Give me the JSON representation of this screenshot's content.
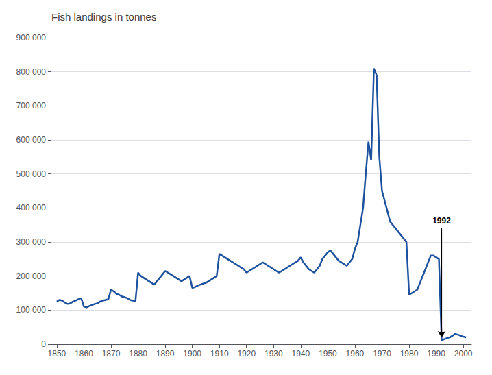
{
  "chart_data": {
    "type": "line",
    "title": "Fish landings in tonnes",
    "x": [
      1850,
      1851,
      1852,
      1853,
      1854,
      1855,
      1856,
      1857,
      1858,
      1859,
      1860,
      1861,
      1862,
      1863,
      1864,
      1865,
      1866,
      1867,
      1868,
      1869,
      1870,
      1871,
      1872,
      1873,
      1874,
      1875,
      1876,
      1877,
      1878,
      1879,
      1880,
      1881,
      1882,
      1883,
      1884,
      1885,
      1886,
      1887,
      1888,
      1889,
      1890,
      1891,
      1892,
      1893,
      1894,
      1895,
      1896,
      1897,
      1898,
      1899,
      1900,
      1901,
      1902,
      1903,
      1904,
      1905,
      1906,
      1907,
      1908,
      1909,
      1910,
      1911,
      1912,
      1913,
      1914,
      1915,
      1916,
      1917,
      1918,
      1919,
      1920,
      1921,
      1922,
      1923,
      1924,
      1925,
      1926,
      1927,
      1928,
      1929,
      1930,
      1931,
      1932,
      1933,
      1934,
      1935,
      1936,
      1937,
      1938,
      1939,
      1940,
      1941,
      1942,
      1943,
      1944,
      1945,
      1946,
      1947,
      1948,
      1949,
      1950,
      1951,
      1952,
      1953,
      1954,
      1955,
      1956,
      1957,
      1958,
      1959,
      1960,
      1961,
      1962,
      1963,
      1964,
      1965,
      1966,
      1967,
      1968,
      1969,
      1970,
      1971,
      1972,
      1973,
      1974,
      1975,
      1976,
      1977,
      1978,
      1979,
      1980,
      1981,
      1982,
      1983,
      1984,
      1985,
      1986,
      1987,
      1988,
      1989,
      1990,
      1991,
      1992,
      1993,
      1994,
      1995,
      1996,
      1997,
      1998,
      1999,
      2000,
      2001
    ],
    "values": [
      125000,
      130000,
      128000,
      122000,
      118000,
      120000,
      125000,
      128000,
      132000,
      135000,
      110000,
      108000,
      112000,
      115000,
      118000,
      120000,
      125000,
      128000,
      130000,
      132000,
      160000,
      155000,
      148000,
      145000,
      140000,
      138000,
      135000,
      130000,
      128000,
      125000,
      210000,
      200000,
      195000,
      190000,
      185000,
      180000,
      175000,
      185000,
      195000,
      205000,
      215000,
      210000,
      205000,
      200000,
      195000,
      190000,
      185000,
      190000,
      195000,
      200000,
      165000,
      168000,
      172000,
      175000,
      178000,
      180000,
      185000,
      190000,
      195000,
      200000,
      265000,
      260000,
      255000,
      250000,
      245000,
      240000,
      235000,
      230000,
      225000,
      220000,
      210000,
      215000,
      220000,
      225000,
      230000,
      235000,
      240000,
      235000,
      230000,
      225000,
      220000,
      215000,
      210000,
      215000,
      220000,
      225000,
      230000,
      235000,
      240000,
      245000,
      255000,
      240000,
      230000,
      220000,
      215000,
      210000,
      220000,
      230000,
      250000,
      260000,
      270000,
      275000,
      265000,
      255000,
      245000,
      240000,
      235000,
      230000,
      240000,
      250000,
      280000,
      300000,
      350000,
      400000,
      500000,
      595000,
      540000,
      810000,
      790000,
      550000,
      450000,
      420000,
      390000,
      360000,
      350000,
      340000,
      330000,
      320000,
      310000,
      300000,
      145000,
      150000,
      155000,
      160000,
      180000,
      200000,
      220000,
      240000,
      260000,
      260000,
      255000,
      250000,
      10000,
      15000,
      18000,
      20000,
      25000,
      30000,
      28000,
      25000,
      22000,
      20000
    ],
    "color": "#1e519e",
    "xlim": [
      1848,
      2003
    ],
    "xticks": [
      1850,
      1860,
      1870,
      1880,
      1890,
      1900,
      1910,
      1920,
      1930,
      1940,
      1950,
      1960,
      1970,
      1980,
      1990,
      2000
    ],
    "ylim": [
      0,
      900000
    ],
    "yticks": [
      0,
      {
        "value": 100000,
        "label": "100 000"
      },
      {
        "value": 200000,
        "label": "200 000"
      },
      {
        "value": 300000,
        "label": "300 000"
      },
      {
        "value": 400000,
        "label": "400 000"
      },
      {
        "value": 500000,
        "label": "500 000"
      },
      {
        "value": 600000,
        "label": "600 000"
      },
      {
        "value": 700000,
        "label": "700 000"
      },
      {
        "value": 800000,
        "label": "800 000"
      },
      {
        "value": 900000,
        "label": "900 000"
      }
    ],
    "grid": true,
    "annotations": [
      {
        "text": "1992",
        "x": 1992,
        "y_start": 340000,
        "y_end": 20000
      }
    ]
  }
}
